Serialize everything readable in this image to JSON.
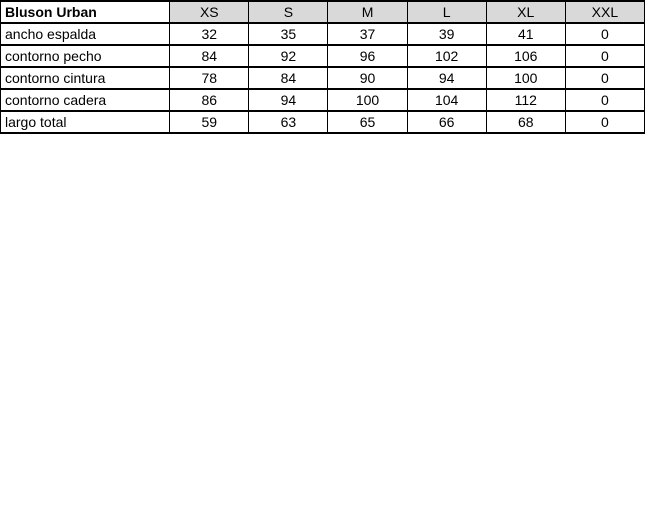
{
  "page": {
    "background_color": "#ffffff"
  },
  "table": {
    "title": "Bluson Urban",
    "header_background_color": "#d9d9d9",
    "border_color": "#000000",
    "columns": [
      "XS",
      "S",
      "M",
      "L",
      "XL",
      "XXL"
    ],
    "rows": [
      {
        "label": "ancho espalda",
        "values": [
          "32",
          "35",
          "37",
          "39",
          "41",
          "0"
        ]
      },
      {
        "label": "contorno pecho",
        "values": [
          "84",
          "92",
          "96",
          "102",
          "106",
          "0"
        ]
      },
      {
        "label": "contorno cintura",
        "values": [
          "78",
          "84",
          "90",
          "94",
          "100",
          "0"
        ]
      },
      {
        "label": "contorno cadera",
        "values": [
          "86",
          "94",
          "100",
          "104",
          "112",
          "0"
        ]
      },
      {
        "label": "largo total",
        "values": [
          "59",
          "63",
          "65",
          "66",
          "68",
          "0"
        ]
      }
    ]
  }
}
